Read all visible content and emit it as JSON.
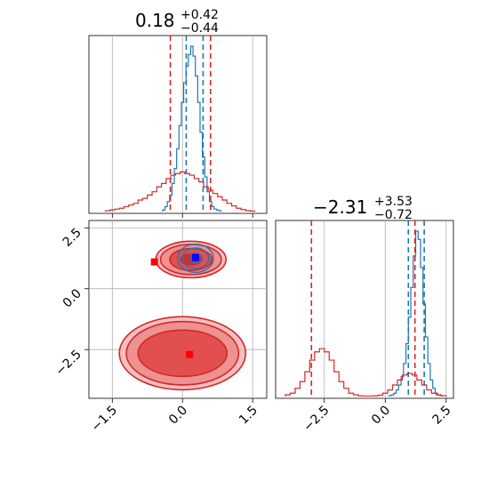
{
  "colors": {
    "blue": "#1f77b4",
    "red": "#d62728",
    "square_blue": "#0000ff",
    "square_red": "#ff0000",
    "grid": "#b0b0b0"
  },
  "chart_data": [
    {
      "panel": "top-left",
      "type": "histogram",
      "parameter_index": 0,
      "title": {
        "value": "0.18",
        "plus": "+0.42",
        "minus": "−0.44"
      },
      "xlim": [
        -2.0,
        1.8
      ],
      "xticks": [
        -1.5,
        0.0,
        1.5
      ],
      "series": [
        {
          "color": "blue",
          "x": [
            -0.4,
            -0.35,
            -0.3,
            -0.25,
            -0.2,
            -0.15,
            -0.1,
            -0.05,
            0.0,
            0.05,
            0.1,
            0.15,
            0.2,
            0.25,
            0.3,
            0.35,
            0.4,
            0.45,
            0.5,
            0.55,
            0.6,
            0.65,
            0.7,
            0.75,
            0.8
          ],
          "density": [
            0.01,
            0.03,
            0.06,
            0.1,
            0.17,
            0.26,
            0.38,
            0.52,
            0.66,
            0.78,
            0.88,
            0.95,
            1.0,
            0.94,
            0.82,
            0.66,
            0.48,
            0.33,
            0.21,
            0.12,
            0.06,
            0.03,
            0.015,
            0.01,
            0.005
          ],
          "quantiles": [
            0.08,
            0.44
          ]
        },
        {
          "color": "red",
          "x": [
            -1.6,
            -1.5,
            -1.4,
            -1.3,
            -1.2,
            -1.1,
            -1.0,
            -0.9,
            -0.8,
            -0.7,
            -0.6,
            -0.5,
            -0.4,
            -0.3,
            -0.2,
            -0.1,
            0.0,
            0.1,
            0.2,
            0.3,
            0.4,
            0.5,
            0.6,
            0.7,
            0.8,
            0.9,
            1.0,
            1.1,
            1.2,
            1.3,
            1.4,
            1.5
          ],
          "density": [
            0.005,
            0.01,
            0.015,
            0.02,
            0.03,
            0.04,
            0.05,
            0.07,
            0.08,
            0.1,
            0.12,
            0.15,
            0.17,
            0.2,
            0.22,
            0.23,
            0.24,
            0.23,
            0.22,
            0.2,
            0.18,
            0.15,
            0.13,
            0.11,
            0.09,
            0.07,
            0.05,
            0.035,
            0.02,
            0.012,
            0.006,
            0.003
          ],
          "quantiles": [
            -0.26,
            0.6
          ]
        }
      ]
    },
    {
      "panel": "bottom-left",
      "type": "2d-density-contour",
      "xlim": [
        -2.0,
        1.8
      ],
      "ylim": [
        -4.5,
        2.8
      ],
      "xticks": [
        -1.5,
        0.0,
        1.5
      ],
      "yticks": [
        -2.5,
        0.0,
        2.5
      ],
      "xtick_labels": [
        "−1.5",
        "0.0",
        "1.5"
      ],
      "ytick_labels": [
        "−2.5",
        "0.0",
        "2.5"
      ],
      "red_modes": [
        {
          "cx": 0.18,
          "cy": 1.2,
          "rx": [
            0.75,
            0.65,
            0.45,
            0.22
          ],
          "ry": [
            0.75,
            0.62,
            0.45,
            0.22
          ]
        },
        {
          "cx": 0.0,
          "cy": -2.65,
          "rx": [
            1.35,
            1.2,
            0.95
          ],
          "ry": [
            1.5,
            1.3,
            0.95
          ]
        }
      ],
      "blue_mode": {
        "cx": 0.28,
        "cy": 1.25,
        "rx": [
          0.38,
          0.28,
          0.14
        ],
        "ry": [
          0.58,
          0.42,
          0.2
        ]
      },
      "markers": [
        {
          "color": "square_red",
          "x": -0.6,
          "y": 1.1
        },
        {
          "color": "square_blue",
          "x": 0.28,
          "y": 1.28
        },
        {
          "color": "square_red",
          "x": 0.15,
          "y": -2.7
        }
      ]
    },
    {
      "panel": "bottom-right",
      "type": "histogram",
      "parameter_index": 1,
      "title": {
        "value": "−2.31",
        "plus": "+3.53",
        "minus": "−0.72"
      },
      "xlim": [
        -4.5,
        2.8
      ],
      "xticks": [
        -2.5,
        0.0,
        2.5
      ],
      "xtick_labels": [
        "−2.5",
        "0.0",
        "2.5"
      ],
      "series": [
        {
          "color": "blue",
          "x": [
            0.2,
            0.3,
            0.4,
            0.5,
            0.6,
            0.7,
            0.8,
            0.9,
            1.0,
            1.1,
            1.2,
            1.3,
            1.4,
            1.5,
            1.6,
            1.7,
            1.8,
            1.9,
            2.0,
            2.1,
            2.2,
            2.3
          ],
          "density": [
            0.005,
            0.01,
            0.02,
            0.04,
            0.07,
            0.12,
            0.2,
            0.32,
            0.48,
            0.66,
            0.85,
            1.0,
            0.95,
            0.78,
            0.56,
            0.36,
            0.2,
            0.1,
            0.05,
            0.02,
            0.01,
            0.005
          ],
          "quantiles": [
            0.95,
            1.6
          ]
        },
        {
          "color": "red",
          "x": [
            -4.0,
            -3.8,
            -3.6,
            -3.4,
            -3.2,
            -3.0,
            -2.8,
            -2.6,
            -2.4,
            -2.2,
            -2.0,
            -1.8,
            -1.6,
            -1.4,
            -1.2,
            -1.0,
            -0.8,
            -0.6,
            -0.4,
            -0.2,
            0.0,
            0.2,
            0.4,
            0.6,
            0.8,
            1.0,
            1.2,
            1.4,
            1.6,
            1.8,
            2.0,
            2.2,
            2.4
          ],
          "density": [
            0.01,
            0.02,
            0.05,
            0.09,
            0.15,
            0.22,
            0.27,
            0.29,
            0.27,
            0.22,
            0.15,
            0.09,
            0.05,
            0.02,
            0.01,
            0.004,
            0.003,
            0.003,
            0.004,
            0.008,
            0.02,
            0.04,
            0.07,
            0.1,
            0.13,
            0.14,
            0.13,
            0.1,
            0.07,
            0.04,
            0.02,
            0.01,
            0.005
          ],
          "quantiles": [
            -3.03,
            1.22
          ]
        }
      ]
    }
  ]
}
